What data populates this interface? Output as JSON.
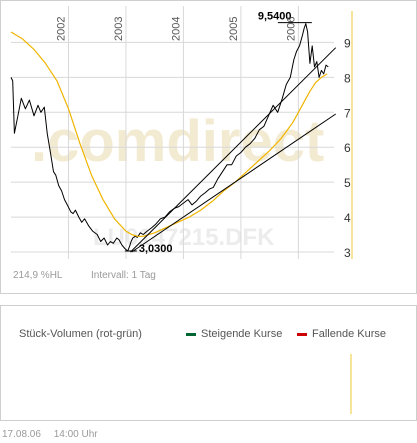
{
  "watermark": ".comdirect",
  "instrument_overlay": "LU0147215.DFK",
  "info": {
    "performance": "214,9 %HL",
    "interval": "Intervall: 1 Tag"
  },
  "volume": {
    "title": "Stück-Volumen (rot-grün)",
    "legend_up": "Steigende Kurse",
    "legend_down": "Fallende Kurse"
  },
  "footer": {
    "date": "17.08.06",
    "time": "14:00 Uhr"
  },
  "colors": {
    "price": "#000000",
    "moving_average": "#f0b400",
    "trendline": "#000000",
    "grid": "#d8d8d8",
    "up": "#006633",
    "down": "#cc0000",
    "watermark": "#f3ead2",
    "last_marker": "#f7e39a"
  },
  "chart_data": {
    "type": "line",
    "x_ticks": [
      "2002",
      "2003",
      "2004",
      "2005",
      "2006"
    ],
    "y_ticks": [
      3,
      4,
      5,
      6,
      7,
      8,
      9
    ],
    "ylim": [
      2.8,
      9.9
    ],
    "xlim": [
      2001.0,
      2006.62
    ],
    "grid": true,
    "annotations": [
      {
        "label": "9,5400",
        "x": 2006.13,
        "y": 9.54
      },
      {
        "label": "3,0300",
        "x": 2003.12,
        "y": 3.03
      }
    ],
    "series": [
      {
        "role": "price",
        "x": [
          2001.0,
          2001.03,
          2001.06,
          2001.12,
          2001.18,
          2001.25,
          2001.32,
          2001.4,
          2001.47,
          2001.52,
          2001.58,
          2001.63,
          2001.69,
          2001.74,
          2001.78,
          2001.83,
          2001.88,
          2001.93,
          2001.98,
          2002.04,
          2002.08,
          2002.12,
          2002.18,
          2002.23,
          2002.28,
          2002.35,
          2002.42,
          2002.5,
          2002.56,
          2002.62,
          2002.68,
          2002.73,
          2002.78,
          2002.84,
          2002.88,
          2002.93,
          2002.98,
          2003.03,
          2003.06,
          2003.09,
          2003.12,
          2003.16,
          2003.2,
          2003.25,
          2003.3,
          2003.37,
          2003.45,
          2003.52,
          2003.6,
          2003.68,
          2003.76,
          2003.84,
          2003.92,
          2004.0,
          2004.08,
          2004.15,
          2004.22,
          2004.3,
          2004.38,
          2004.45,
          2004.52,
          2004.6,
          2004.68,
          2004.76,
          2004.84,
          2004.92,
          2005.0,
          2005.08,
          2005.16,
          2005.24,
          2005.32,
          2005.4,
          2005.48,
          2005.56,
          2005.64,
          2005.72,
          2005.79,
          2005.86,
          2005.92,
          2005.97,
          2006.02,
          2006.07,
          2006.1,
          2006.13,
          2006.16,
          2006.2,
          2006.24,
          2006.28,
          2006.32,
          2006.36,
          2006.4,
          2006.44,
          2006.48,
          2006.52
        ],
        "y": [
          8.0,
          7.9,
          6.4,
          6.9,
          7.4,
          7.1,
          7.35,
          6.9,
          7.2,
          7.0,
          7.15,
          6.4,
          5.8,
          5.3,
          5.2,
          4.9,
          4.75,
          4.5,
          4.35,
          4.15,
          4.1,
          4.2,
          4.0,
          3.85,
          3.95,
          3.75,
          3.6,
          3.5,
          3.3,
          3.4,
          3.2,
          3.3,
          3.25,
          3.4,
          3.35,
          3.2,
          3.1,
          3.03,
          3.15,
          3.3,
          3.4,
          3.45,
          3.42,
          3.55,
          3.5,
          3.6,
          3.7,
          3.8,
          3.95,
          4.0,
          4.15,
          4.25,
          4.3,
          4.4,
          4.5,
          4.35,
          4.45,
          4.6,
          4.7,
          4.8,
          4.85,
          5.1,
          5.3,
          5.5,
          5.5,
          5.75,
          5.85,
          6.0,
          6.1,
          6.25,
          6.5,
          6.6,
          6.9,
          7.2,
          7.0,
          7.4,
          7.8,
          8.0,
          8.5,
          8.75,
          8.9,
          9.2,
          9.4,
          9.54,
          9.3,
          8.4,
          8.9,
          8.3,
          8.45,
          8.0,
          8.2,
          8.1,
          8.35,
          8.3
        ]
      },
      {
        "role": "moving_average",
        "x": [
          2001.0,
          2001.2,
          2001.4,
          2001.6,
          2001.8,
          2002.0,
          2002.2,
          2002.4,
          2002.6,
          2002.8,
          2003.0,
          2003.1,
          2003.2,
          2003.3,
          2003.5,
          2003.7,
          2003.9,
          2004.1,
          2004.3,
          2004.5,
          2004.7,
          2004.9,
          2005.1,
          2005.3,
          2005.5,
          2005.7,
          2005.9,
          2006.0,
          2006.1,
          2006.2,
          2006.3,
          2006.4,
          2006.5
        ],
        "y": [
          9.3,
          9.1,
          8.8,
          8.4,
          7.9,
          7.1,
          6.1,
          5.2,
          4.5,
          3.95,
          3.6,
          3.5,
          3.45,
          3.45,
          3.55,
          3.7,
          3.85,
          4.0,
          4.2,
          4.45,
          4.75,
          5.0,
          5.3,
          5.6,
          5.9,
          6.25,
          6.7,
          7.0,
          7.3,
          7.6,
          7.85,
          8.0,
          8.1
        ]
      },
      {
        "role": "trendline",
        "x": [
          2003.08,
          2006.65
        ],
        "y": [
          3.0,
          8.85
        ]
      },
      {
        "role": "trendline",
        "x": [
          2003.1,
          2006.65
        ],
        "y": [
          3.0,
          6.95
        ]
      }
    ]
  }
}
